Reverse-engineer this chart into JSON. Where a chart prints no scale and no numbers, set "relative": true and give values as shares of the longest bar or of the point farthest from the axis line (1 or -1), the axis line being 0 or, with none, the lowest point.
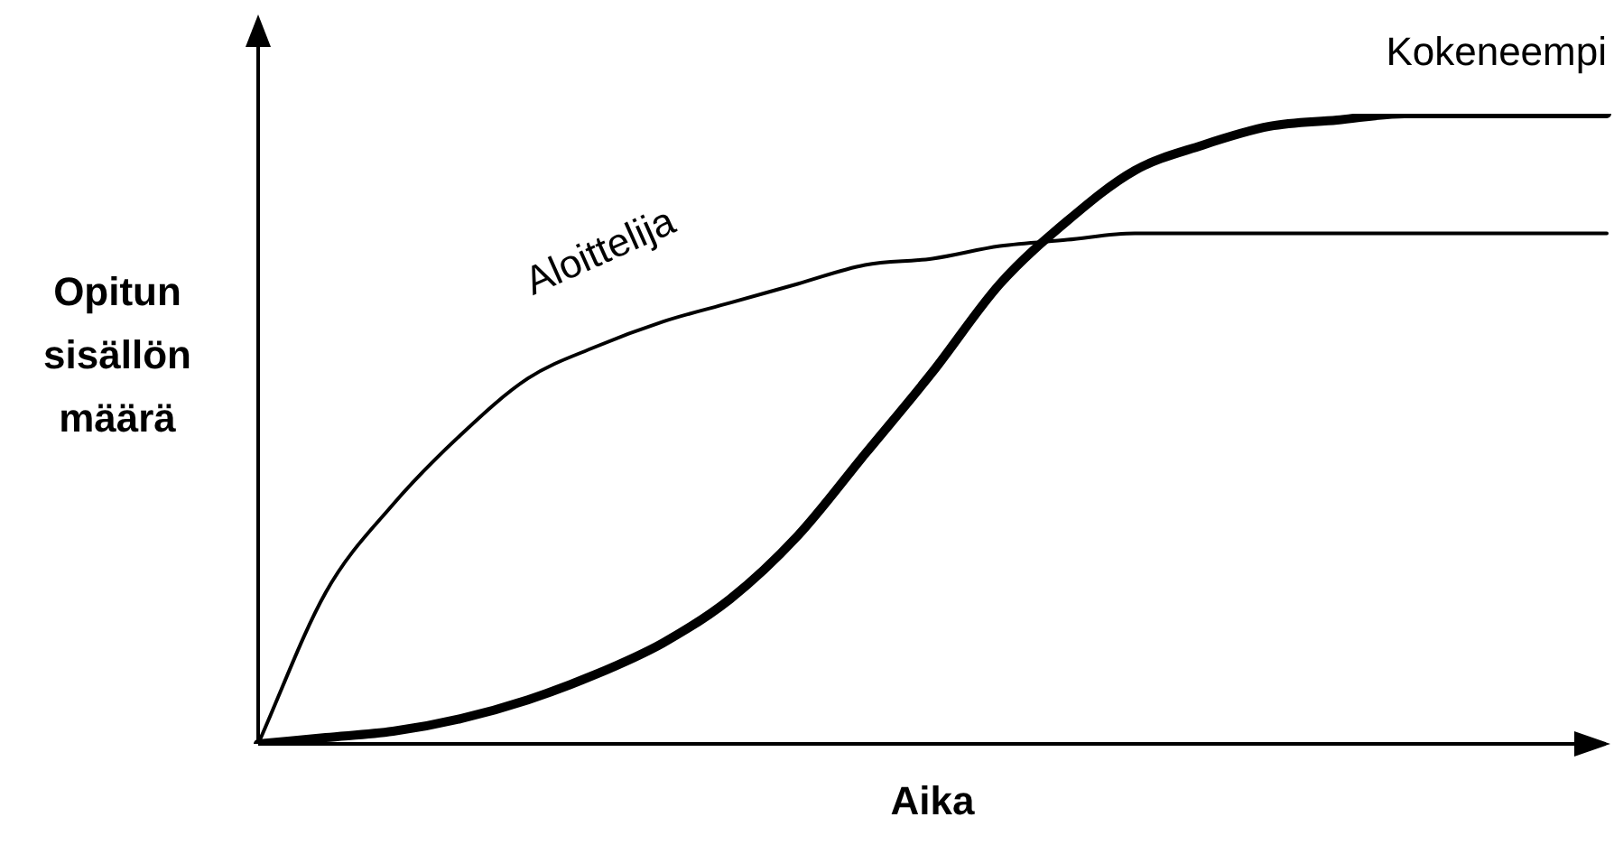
{
  "chart_data": {
    "type": "line",
    "relative": true,
    "xlabel": "Aika",
    "ylabel": "Opitun sisällön määrä",
    "legend": false,
    "marker": "none",
    "categories": [
      null,
      null,
      null,
      null,
      null,
      null,
      null,
      null,
      null,
      null,
      null,
      null,
      null,
      null,
      null,
      null,
      null,
      null,
      null,
      null,
      null
    ],
    "series": [
      {
        "name": "Aloittelija",
        "color": "#000000",
        "values": [
          0,
          0.24,
          0.38,
          0.49,
          0.58,
          0.63,
          0.67,
          0.7,
          0.73,
          0.76,
          0.77,
          0.79,
          0.8,
          0.81,
          0.81,
          0.81,
          0.81,
          0.81,
          0.81,
          0.81,
          0.81
        ]
      },
      {
        "name": "Kokeneempi",
        "color": "#000000",
        "values": [
          0,
          0.01,
          0.02,
          0.04,
          0.07,
          0.11,
          0.16,
          0.23,
          0.33,
          0.46,
          0.59,
          0.73,
          0.83,
          0.91,
          0.95,
          0.98,
          0.99,
          1,
          1,
          1,
          1
        ]
      }
    ]
  }
}
